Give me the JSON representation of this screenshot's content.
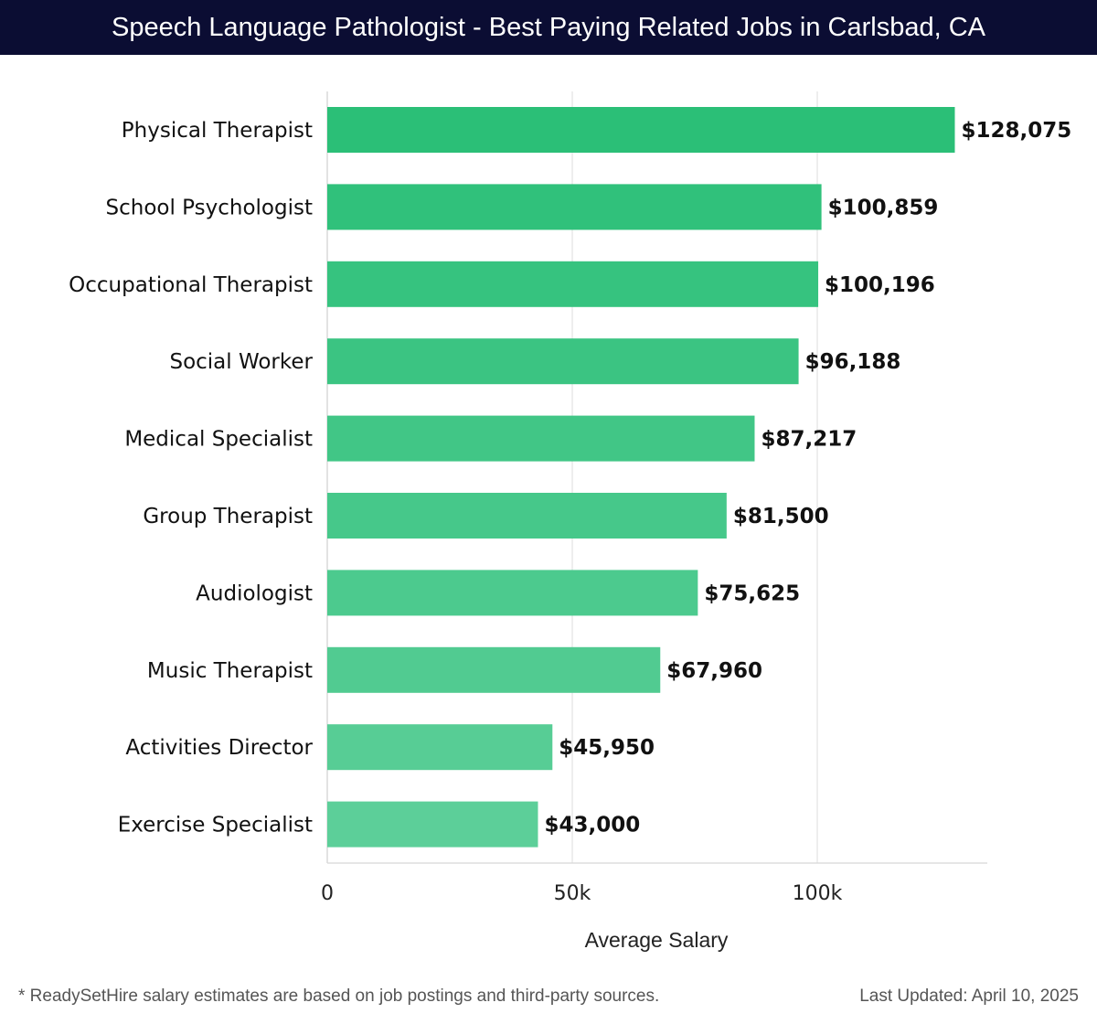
{
  "title": "Speech Language Pathologist - Best Paying Related Jobs in Carlsbad, CA",
  "footnote": "* ReadySetHire salary estimates are based on job postings and third-party sources.",
  "last_updated": "Last Updated: April 10, 2025",
  "colors": {
    "header_bg": "#0b0d33",
    "bar_top": "#2bbf77",
    "bar_bottom": "#5ccf99",
    "grid": "#e2e2e2"
  },
  "chart_data": {
    "type": "bar",
    "orientation": "horizontal",
    "title": "Speech Language Pathologist - Best Paying Related Jobs in Carlsbad, CA",
    "xlabel": "Average Salary",
    "ylabel": "",
    "xlim": [
      0,
      135000
    ],
    "x_ticks": [
      0,
      50000,
      100000
    ],
    "x_tick_labels": [
      "0",
      "50k",
      "100k"
    ],
    "grid": true,
    "categories": [
      "Physical Therapist",
      "School Psychologist",
      "Occupational Therapist",
      "Social Worker",
      "Medical Specialist",
      "Group Therapist",
      "Audiologist",
      "Music Therapist",
      "Activities Director",
      "Exercise Specialist"
    ],
    "values": [
      128075,
      100859,
      100196,
      96188,
      87217,
      81500,
      75625,
      67960,
      45950,
      43000
    ],
    "value_labels": [
      "$128,075",
      "$100,859",
      "$100,196",
      "$96,188",
      "$87,217",
      "$81,500",
      "$75,625",
      "$67,960",
      "$45,950",
      "$43,000"
    ]
  }
}
